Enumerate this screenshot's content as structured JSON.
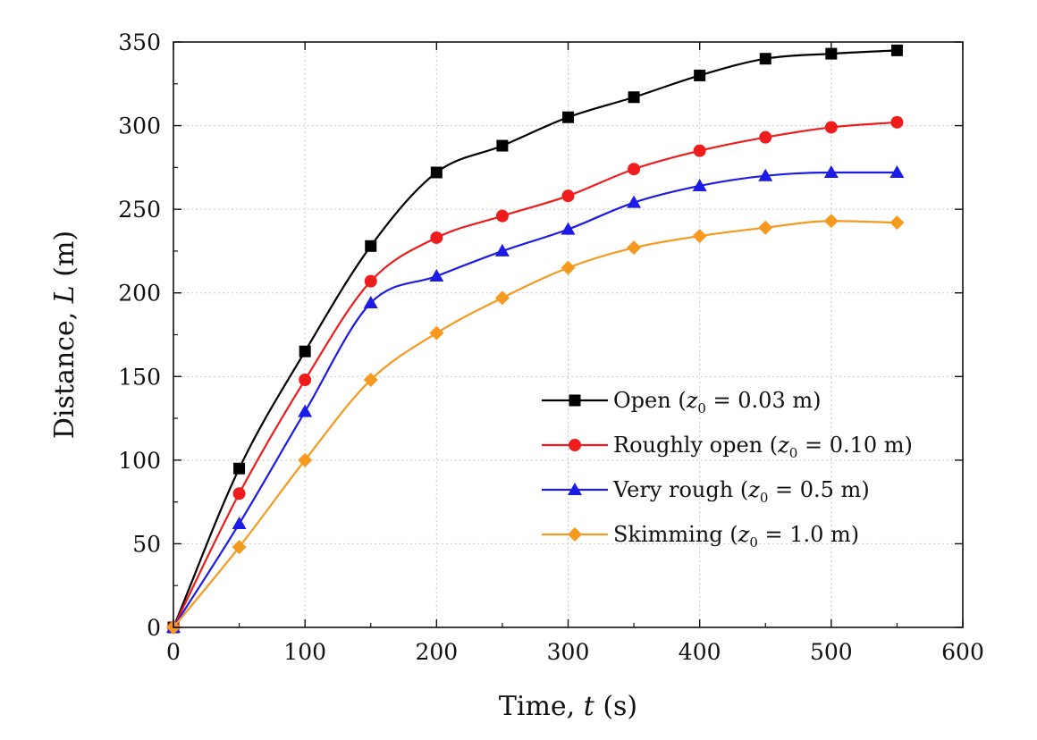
{
  "chart_data": {
    "type": "line",
    "title": "",
    "xlabel": {
      "prefix": "Time, ",
      "var": "t",
      "suffix": " (s)"
    },
    "ylabel": {
      "prefix": "Distance, ",
      "var": "L",
      "suffix": " (m)"
    },
    "xlim": [
      0,
      600
    ],
    "ylim": [
      0,
      350
    ],
    "xticks": [
      0,
      100,
      200,
      300,
      400,
      500,
      600
    ],
    "yticks": [
      0,
      50,
      100,
      150,
      200,
      250,
      300,
      350
    ],
    "grid": true,
    "legend_position": "center-right",
    "x": [
      0,
      50,
      100,
      150,
      200,
      250,
      300,
      350,
      400,
      450,
      500,
      550
    ],
    "series": [
      {
        "name": "Open (z0 = 0.03 m)",
        "label_pre": "Open (",
        "label_var": "z",
        "label_sub": "0",
        "label_post": " = 0.03 m)",
        "color": "#000000",
        "marker": "square",
        "values": [
          0,
          95,
          165,
          228,
          272,
          288,
          305,
          317,
          330,
          340,
          343,
          345
        ]
      },
      {
        "name": "Roughly open (z0 = 0.10 m)",
        "label_pre": "Roughly open (",
        "label_var": "z",
        "label_sub": "0",
        "label_post": " = 0.10 m)",
        "color": "#ee1c1c",
        "marker": "circle",
        "values": [
          0,
          80,
          148,
          207,
          233,
          246,
          258,
          274,
          285,
          293,
          299,
          302
        ]
      },
      {
        "name": "Very rough (z0 = 0.5 m)",
        "label_pre": "Very rough (",
        "label_var": "z",
        "label_sub": "0",
        "label_post": " = 0.5 m)",
        "color": "#1c1ce6",
        "marker": "triangle",
        "values": [
          0,
          62,
          129,
          194,
          210,
          225,
          238,
          254,
          264,
          270,
          272,
          272
        ]
      },
      {
        "name": "Skimming (z0 = 1.0 m)",
        "label_pre": "Skimming (",
        "label_var": "z",
        "label_sub": "0",
        "label_post": " = 1.0 m)",
        "color": "#f59a1e",
        "marker": "diamond",
        "values": [
          0,
          48,
          100,
          148,
          176,
          197,
          215,
          227,
          234,
          239,
          243,
          242
        ]
      }
    ]
  }
}
